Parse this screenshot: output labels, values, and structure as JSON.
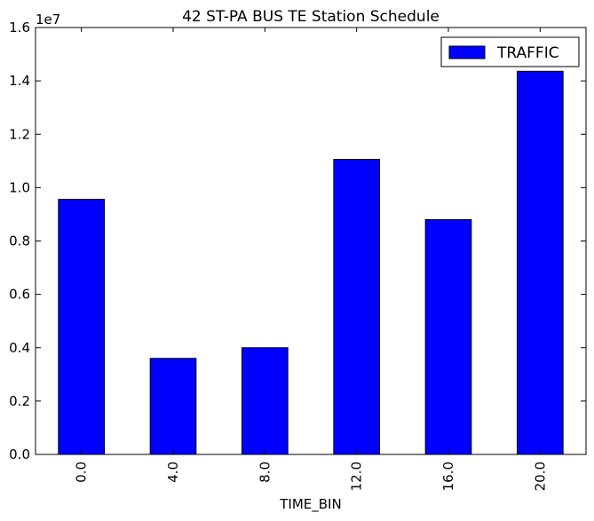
{
  "chart_data": {
    "type": "bar",
    "title": "42 ST-PA BUS TE Station Schedule",
    "xlabel": "TIME_BIN",
    "ylabel": "",
    "y_offset_label": "1e7",
    "categories": [
      "0.0",
      "4.0",
      "8.0",
      "12.0",
      "16.0",
      "20.0"
    ],
    "series": [
      {
        "name": "TRAFFIC",
        "values": [
          9560000,
          3600000,
          4000000,
          11060000,
          8800000,
          14360000
        ],
        "color": "#0000ff"
      }
    ],
    "ylim": [
      0,
      16000000
    ],
    "y_ticks": [
      0,
      2000000,
      4000000,
      6000000,
      8000000,
      10000000,
      12000000,
      14000000,
      16000000
    ],
    "y_tick_labels": [
      "0.0",
      "0.2",
      "0.4",
      "0.6",
      "0.8",
      "1.0",
      "1.2",
      "1.4",
      "1.6"
    ],
    "legend_position": "top-right",
    "grid": false
  }
}
